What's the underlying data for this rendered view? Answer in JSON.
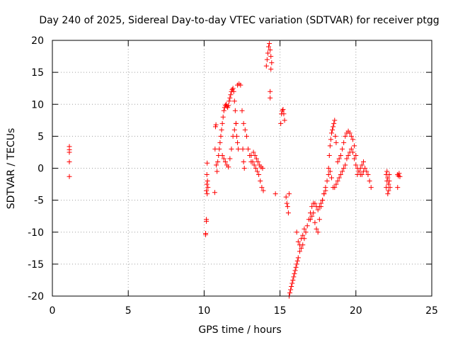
{
  "chart_data": {
    "type": "scatter",
    "title": "Day 240 of 2025, Sidereal Day-to-day VTEC variation (SDTVAR) for receiver ptgg",
    "xlabel": "GPS time / hours",
    "ylabel": "SDTVAR / TECUs",
    "xlim": [
      0,
      25
    ],
    "ylim": [
      -20,
      20
    ],
    "xticks": [
      0,
      5,
      10,
      15,
      20,
      25
    ],
    "yticks": [
      -20,
      -15,
      -10,
      -5,
      0,
      5,
      10,
      15,
      20
    ],
    "xtick_labels": [
      "0",
      "5",
      "10",
      "15",
      "20",
      "25"
    ],
    "ytick_labels": [
      "-20",
      "-15",
      "-10",
      "-5",
      "0",
      "5",
      "10",
      "15",
      "20"
    ],
    "grid": true,
    "marker": "+",
    "color": "#ff0000",
    "series": [
      {
        "name": "SDTVAR",
        "x": [
          1.12,
          1.12,
          1.12,
          1.12,
          1.12,
          10.1,
          10.1,
          10.15,
          10.15,
          10.15,
          10.18,
          10.18,
          10.2,
          10.2,
          10.22,
          10.25,
          10.7,
          10.72,
          10.75,
          10.78,
          10.8,
          10.85,
          10.9,
          10.95,
          11.0,
          11.05,
          11.1,
          11.15,
          11.2,
          11.25,
          11.3,
          11.35,
          11.4,
          11.45,
          11.5,
          11.55,
          11.6,
          11.65,
          11.7,
          11.75,
          11.8,
          11.85,
          11.9,
          11.95,
          12.0,
          12.05,
          12.1,
          12.15,
          12.2,
          12.25,
          11.2,
          11.3,
          11.4,
          11.5,
          11.6,
          11.7,
          11.8,
          11.9,
          12.0,
          12.1,
          12.2,
          12.3,
          12.4,
          12.5,
          12.6,
          12.7,
          12.8,
          12.9,
          13.0,
          13.1,
          12.55,
          12.6,
          12.65,
          13.1,
          13.2,
          13.3,
          13.4,
          13.5,
          13.6,
          13.7,
          13.8,
          13.9,
          13.25,
          13.35,
          13.45,
          13.55,
          13.65,
          13.75,
          13.85,
          14.1,
          14.15,
          14.2,
          14.25,
          14.3,
          14.35,
          14.4,
          14.45,
          14.35,
          14.35,
          14.4,
          14.7,
          15.05,
          15.1,
          15.15,
          15.2,
          15.25,
          15.3,
          15.4,
          15.45,
          15.5,
          15.55,
          15.6,
          15.6,
          15.65,
          15.7,
          15.75,
          15.8,
          15.85,
          15.9,
          15.95,
          16.0,
          16.05,
          16.1,
          16.15,
          16.2,
          16.3,
          16.4,
          16.5,
          16.6,
          16.7,
          16.8,
          16.9,
          17.0,
          17.1,
          17.2,
          17.3,
          17.4,
          17.5,
          17.6,
          17.7,
          17.8,
          17.9,
          18.0,
          18.1,
          18.2,
          18.3,
          18.4,
          18.5,
          16.1,
          16.2,
          16.3,
          16.4,
          16.5,
          16.6,
          17.0,
          17.1,
          17.2,
          17.3,
          17.4,
          17.5,
          17.6,
          17.7,
          17.8,
          17.9,
          18.0,
          18.2,
          18.25,
          18.3,
          18.35,
          18.4,
          18.45,
          18.5,
          18.55,
          18.6,
          18.65,
          18.7,
          18.8,
          18.9,
          19.0,
          19.1,
          19.2,
          19.3,
          19.4,
          19.5,
          19.6,
          19.7,
          19.8,
          19.9,
          20.0,
          18.6,
          18.7,
          18.8,
          18.9,
          19.0,
          19.1,
          19.2,
          19.3,
          19.4,
          19.5,
          19.6,
          19.7,
          19.8,
          19.9,
          20.0,
          20.1,
          20.2,
          20.3,
          20.4,
          20.5,
          20.6,
          20.7,
          20.8,
          20.9,
          21.0,
          20.1,
          20.2,
          20.3,
          20.4,
          20.5,
          22.0,
          22.0,
          22.05,
          22.05,
          22.1,
          22.1,
          22.15,
          22.15,
          22.2,
          22.2,
          22.25,
          22.75,
          22.8,
          22.85,
          22.9,
          22.75
        ],
        "y": [
          3.4,
          2.9,
          2.5,
          1.0,
          -1.3,
          -10.2,
          -10.4,
          -8.0,
          -8.3,
          -3.5,
          -2.5,
          -1.0,
          0.8,
          -4.0,
          -2.0,
          -3.0,
          -3.8,
          3.0,
          6.5,
          6.8,
          0.5,
          -0.5,
          1.0,
          2.0,
          3.0,
          4.0,
          5.0,
          6.0,
          7.0,
          8.0,
          9.0,
          9.5,
          9.8,
          10.0,
          9.7,
          9.5,
          9.8,
          10.5,
          11.0,
          11.5,
          12.0,
          12.3,
          12.5,
          12.0,
          10.5,
          9.0,
          7.0,
          5.0,
          4.0,
          3.0,
          2.0,
          1.5,
          1.0,
          0.5,
          0.2,
          1.5,
          3.0,
          5.0,
          6.0,
          7.0,
          13.0,
          13.2,
          13.0,
          9.0,
          7.0,
          6.0,
          5.0,
          3.0,
          2.0,
          1.0,
          3.0,
          1.0,
          0.0,
          2.0,
          1.0,
          0.5,
          0.0,
          -0.5,
          -1.0,
          -2.0,
          -3.0,
          -3.5,
          2.5,
          2.0,
          1.5,
          1.0,
          0.5,
          0.2,
          0.0,
          16.0,
          17.0,
          18.0,
          19.0,
          19.5,
          18.5,
          17.5,
          16.5,
          12.0,
          11.0,
          15.5,
          -4.0,
          7.0,
          8.5,
          9.0,
          9.2,
          8.5,
          7.5,
          -4.5,
          -5.5,
          -6.0,
          -7.0,
          -4.0,
          -20.0,
          -19.5,
          -19.0,
          -18.5,
          -18.0,
          -17.5,
          -17.0,
          -16.5,
          -16.0,
          -15.5,
          -15.0,
          -14.5,
          -14.0,
          -13.0,
          -12.5,
          -12.0,
          -11.0,
          -10.0,
          -9.0,
          -8.0,
          -7.0,
          -6.0,
          -5.5,
          -5.5,
          -6.0,
          -6.5,
          -6.0,
          -5.5,
          -5.0,
          -4.0,
          -3.0,
          -2.0,
          -1.0,
          -0.5,
          -1.5,
          -3.0,
          -10.0,
          -11.5,
          -12.0,
          -11.0,
          -10.5,
          -9.5,
          -8.0,
          -7.5,
          -7.0,
          -8.5,
          -9.5,
          -10.0,
          -8.0,
          -6.0,
          -5.0,
          -4.0,
          -3.5,
          0.0,
          2.0,
          3.5,
          4.5,
          5.5,
          6.0,
          6.5,
          7.0,
          7.5,
          5.0,
          4.0,
          1.0,
          1.5,
          2.0,
          3.0,
          4.0,
          5.0,
          5.5,
          5.8,
          5.5,
          5.0,
          4.5,
          3.5,
          2.0,
          -3.0,
          -2.5,
          -2.0,
          -1.5,
          -1.0,
          -0.5,
          0.0,
          0.5,
          1.5,
          2.0,
          2.5,
          3.0,
          2.5,
          1.5,
          0.5,
          0.0,
          -0.5,
          -1.0,
          -1.0,
          -0.5,
          0.0,
          -0.5,
          -1.0,
          -2.0,
          -3.0,
          -1.0,
          -0.5,
          0.0,
          0.5,
          1.0,
          -1.0,
          -3.0,
          -0.5,
          -2.0,
          -4.0,
          -1.5,
          -2.5,
          -3.5,
          -1.0,
          -2.0,
          -3.0,
          -1.0,
          -1.2,
          -0.8,
          -1.3,
          -3.0
        ]
      }
    ]
  }
}
